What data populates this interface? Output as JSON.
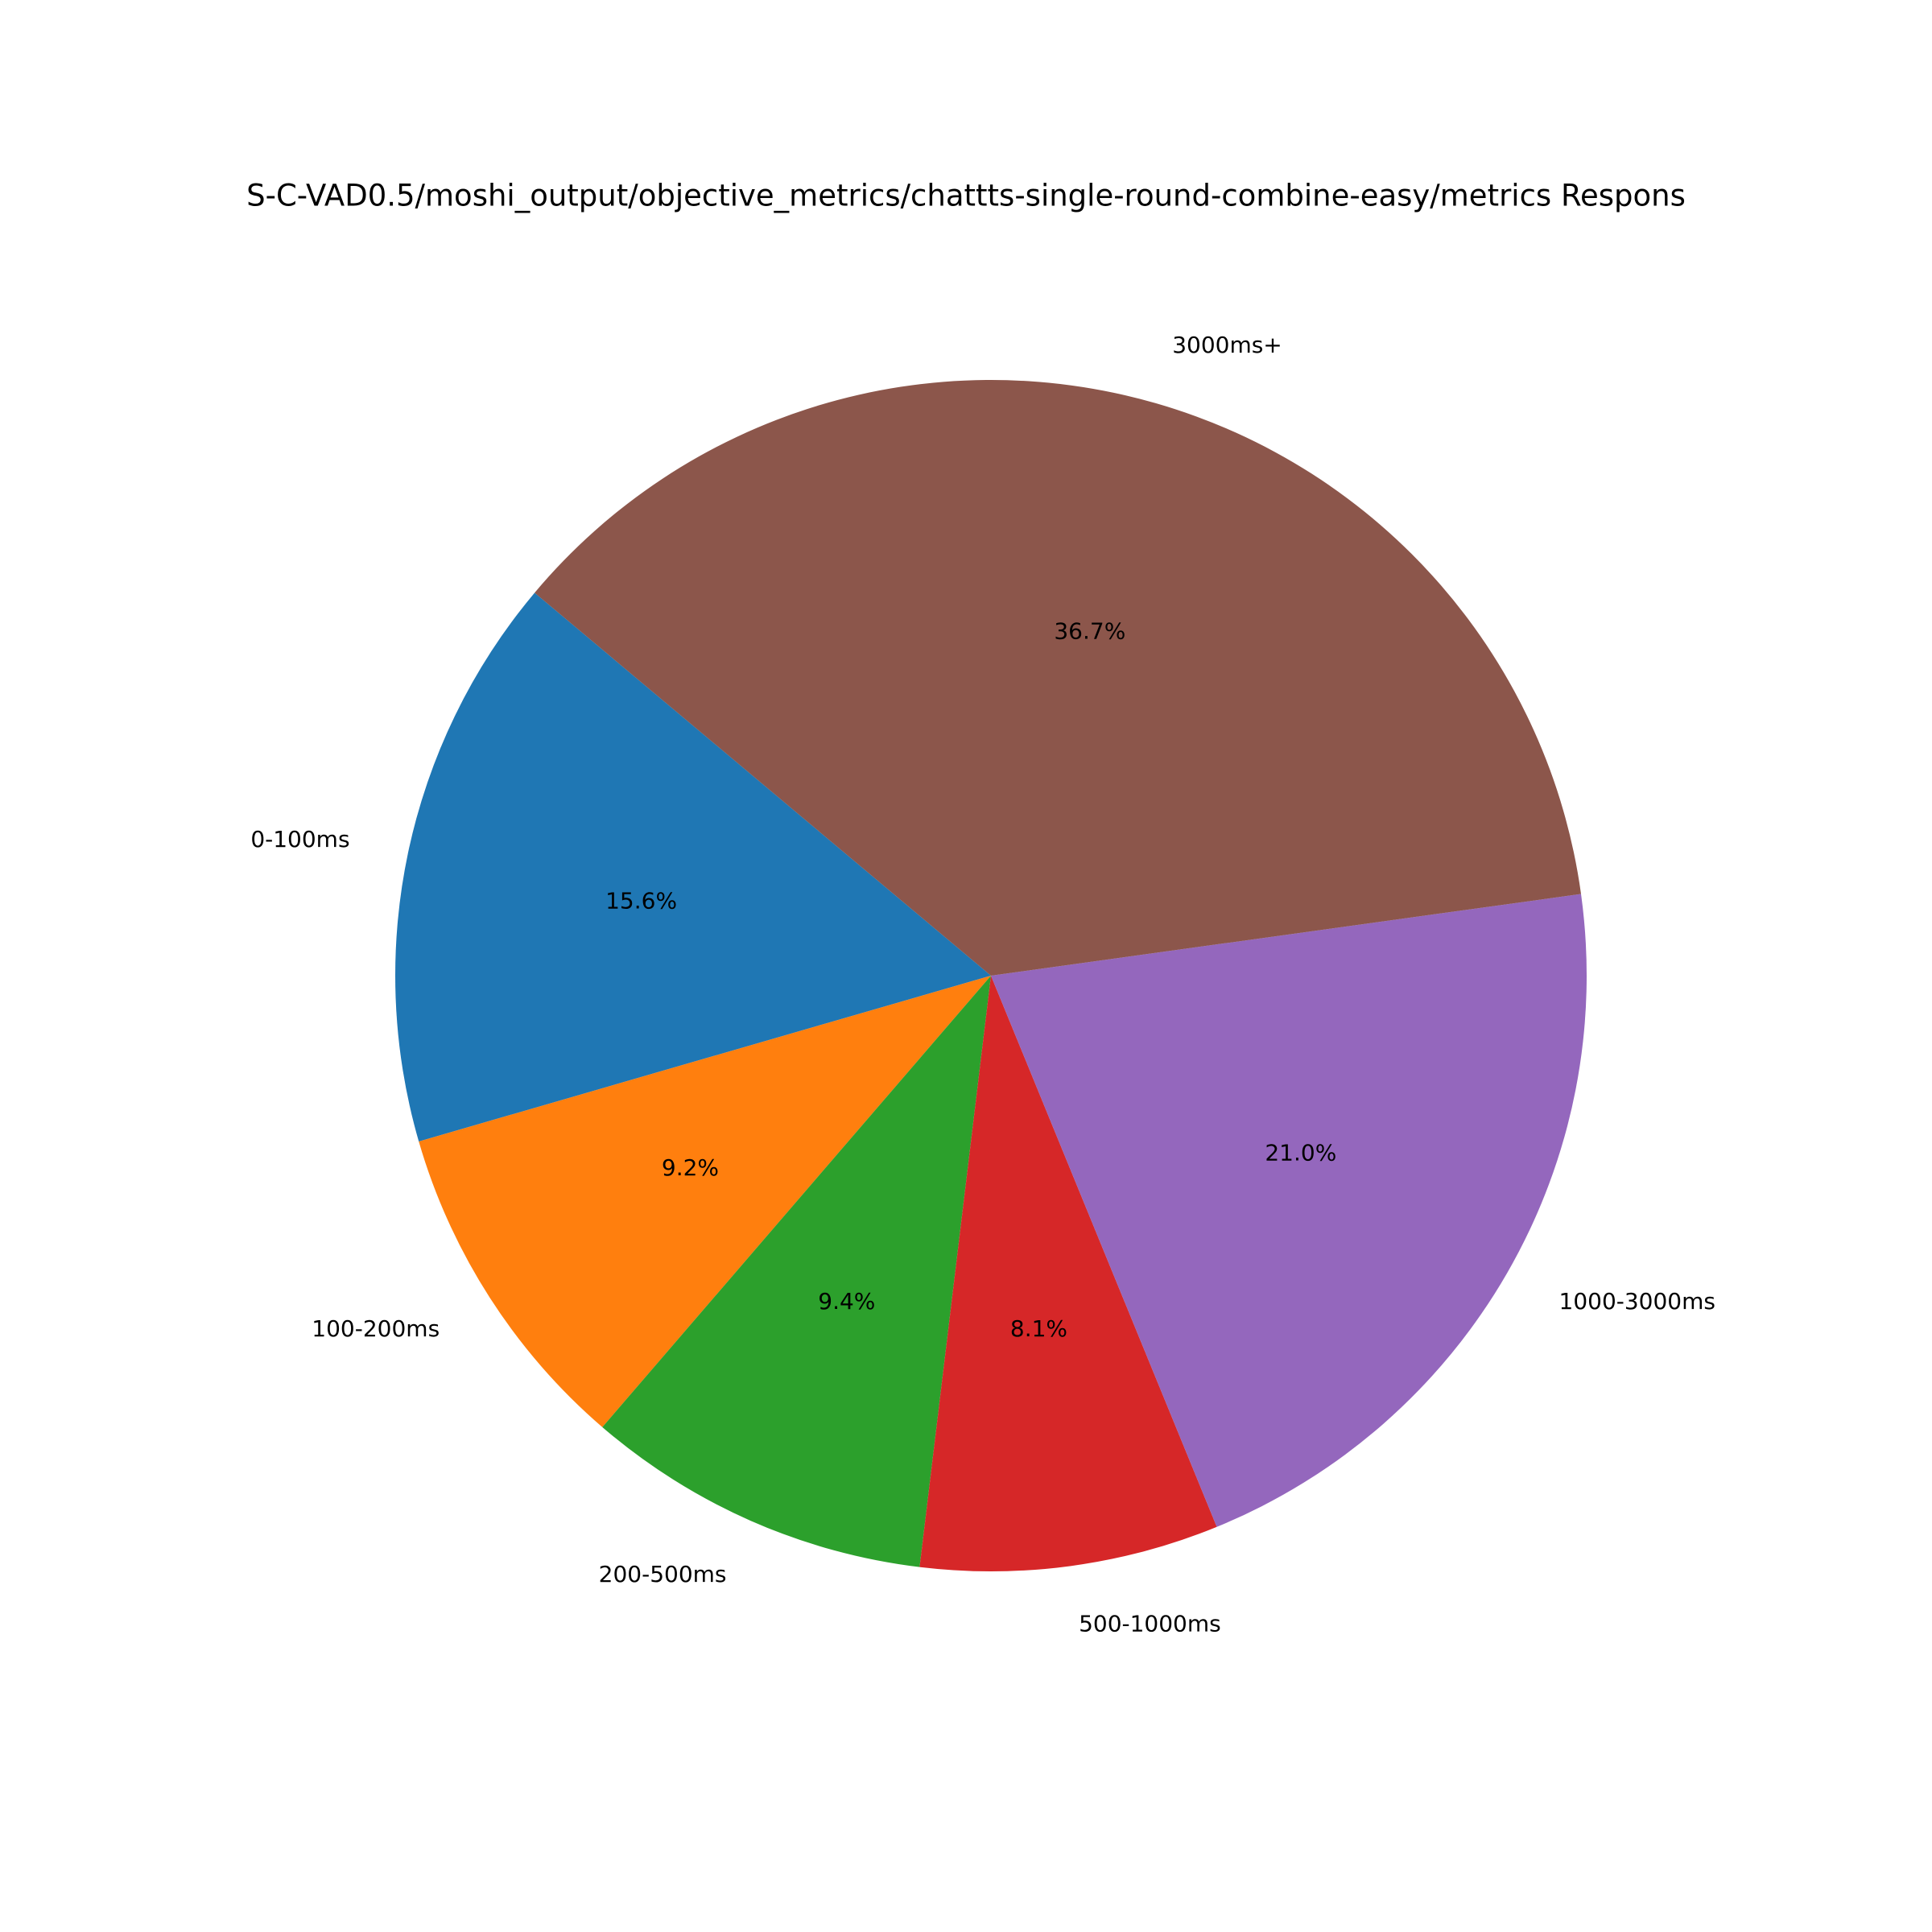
{
  "chart_data": {
    "type": "pie",
    "title": "S-C-VAD0.5/moshi_output/objective_metrics/chattts-single-round-combine-easy/metrics Respons",
    "categories": [
      "0-100ms",
      "100-200ms",
      "200-500ms",
      "500-1000ms",
      "1000-3000ms",
      "3000ms+"
    ],
    "values": [
      15.6,
      9.2,
      9.4,
      8.1,
      21.0,
      36.7
    ],
    "value_labels": [
      "15.6%",
      "9.2%",
      "9.4%",
      "8.1%",
      "21.0%",
      "36.7%"
    ],
    "colors": [
      "#1f77b4",
      "#ff7f0e",
      "#2ca02c",
      "#d62728",
      "#9467bd",
      "#8c564b"
    ],
    "start_angle": 140
  }
}
